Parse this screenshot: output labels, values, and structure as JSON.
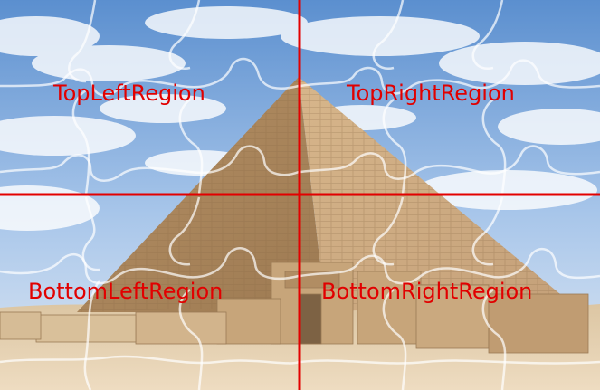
{
  "puzzle": {
    "picture": "pyramid-puzzle-image",
    "grid": {
      "rows": 2,
      "columns": 2
    },
    "divider_color": "#e30000",
    "label_color": "#e10000",
    "regions": [
      {
        "id": "top-left",
        "label": "TopLeftRegion"
      },
      {
        "id": "top-right",
        "label": "TopRightRegion"
      },
      {
        "id": "bottom-left",
        "label": "BottomLeftRegion"
      },
      {
        "id": "bottom-right",
        "label": "BottomRightRegion"
      }
    ]
  }
}
